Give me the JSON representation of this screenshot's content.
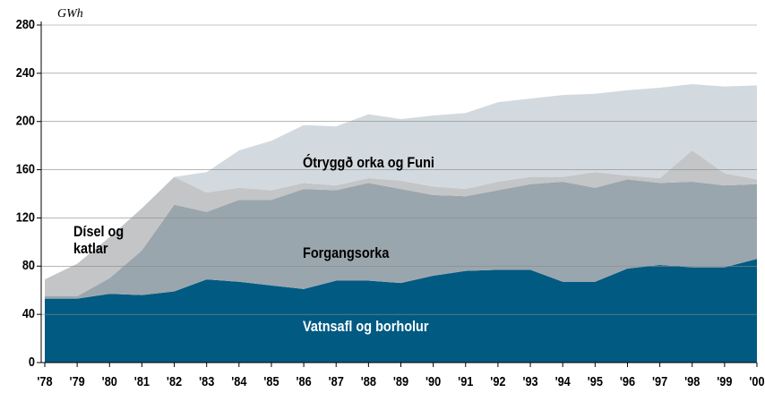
{
  "chart_data": {
    "type": "stacked-area",
    "y_label": "GWh",
    "categories": [
      "'78",
      "'79",
      "'80",
      "'81",
      "'82",
      "'83",
      "'84",
      "'85",
      "'86",
      "'87",
      "'88",
      "'89",
      "'90",
      "'91",
      "'92",
      "'93",
      "'94",
      "'95",
      "'96",
      "'97",
      "'98",
      "'99",
      "'00"
    ],
    "series": [
      {
        "name": "Vatnsafl og borholur",
        "color": "#005a82",
        "label_color": "#ffffff",
        "values": [
          53,
          53,
          57,
          56,
          59,
          69,
          67,
          64,
          61,
          68,
          68,
          66,
          72,
          76,
          77,
          77,
          67,
          67,
          78,
          81,
          79,
          79,
          86
        ]
      },
      {
        "name": "Forgangsorka",
        "color": "#9aa6ad",
        "label_color": "#000000",
        "values": [
          2,
          2,
          13,
          37,
          72,
          56,
          68,
          71,
          83,
          75,
          81,
          78,
          67,
          62,
          66,
          71,
          83,
          78,
          74,
          68,
          71,
          68,
          62
        ]
      },
      {
        "name": "Dísel og katlar",
        "color": "#c3c5c7",
        "label_color": "#000000",
        "values": [
          14,
          27,
          34,
          35,
          23,
          16,
          10,
          8,
          5,
          4,
          4,
          7,
          7,
          6,
          7,
          6,
          4,
          13,
          3,
          4,
          26,
          10,
          4
        ]
      },
      {
        "name": "Ótryggð orka og Funi",
        "color": "#d3dadf",
        "label_color": "#000000",
        "values": [
          0,
          0,
          0,
          0,
          0,
          17,
          31,
          41,
          48,
          49,
          53,
          51,
          59,
          63,
          66,
          65,
          68,
          65,
          71,
          75,
          55,
          72,
          78
        ]
      }
    ],
    "ylim": [
      0,
      280
    ],
    "yticks": [
      0,
      40,
      80,
      120,
      160,
      200,
      240,
      280
    ],
    "grid": true
  }
}
